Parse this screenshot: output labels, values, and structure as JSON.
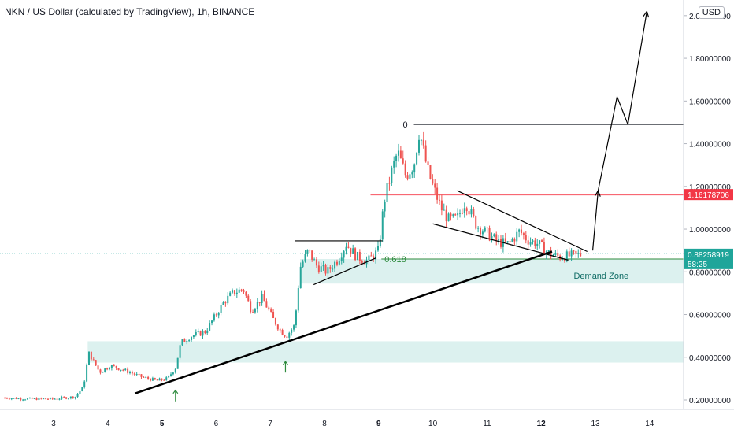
{
  "header": {
    "title": "NKN / US Dollar (calculated by TradingView), 1h, BINANCE",
    "currency_badge": "USD"
  },
  "chart_data": {
    "type": "candlestick",
    "title": "NKN / US Dollar (calculated by TradingView), 1h, BINANCE",
    "x_axis": {
      "ticks": [
        "3",
        "4",
        "5",
        "6",
        "7",
        "8",
        "9",
        "10",
        "11",
        "12",
        "13",
        "14"
      ],
      "bold_ticks": [
        "5",
        "9",
        "12"
      ]
    },
    "y_axis": {
      "ticks": [
        "0.20000000",
        "0.40000000",
        "0.60000000",
        "0.80000000",
        "1.00000000",
        "1.20000000",
        "1.40000000",
        "1.60000000",
        "1.80000000",
        "2.00000000"
      ],
      "range": [
        0.15,
        2.05
      ]
    },
    "price_tags": [
      {
        "value": 1.16178706,
        "label": "1.16178706",
        "color": "#f23645"
      },
      {
        "value": 0.88258919,
        "label": "0.88258919",
        "sublabel": "58:25",
        "color": "#1fa59a"
      }
    ],
    "levels": [
      {
        "label": "0",
        "value": 1.49,
        "color": "#131722"
      },
      {
        "label": "0.618",
        "value": 0.86,
        "color": "#2e8b3e"
      },
      {
        "value": 1.16,
        "color": "#f7525f"
      },
      {
        "value": 0.885,
        "color": "#1fa59a",
        "style": "dotted"
      }
    ],
    "zones": [
      {
        "label": "Demand Zone",
        "from": 0.745,
        "to": 0.86
      },
      {
        "label": "",
        "from": 0.375,
        "to": 0.475
      }
    ],
    "trendline": {
      "from": [
        4.5,
        0.23
      ],
      "to": [
        12.2,
        0.895
      ]
    },
    "projection": [
      [
        12.95,
        0.9
      ],
      [
        13.05,
        1.18
      ],
      [
        13.4,
        1.62
      ],
      [
        13.6,
        1.49
      ],
      [
        13.95,
        2.02
      ]
    ],
    "ohlc_path": [
      [
        2.1,
        0.21
      ],
      [
        2.5,
        0.205
      ],
      [
        3.0,
        0.205
      ],
      [
        3.4,
        0.215
      ],
      [
        3.55,
        0.26
      ],
      [
        3.65,
        0.42
      ],
      [
        3.85,
        0.33
      ],
      [
        4.05,
        0.36
      ],
      [
        4.3,
        0.34
      ],
      [
        4.6,
        0.31
      ],
      [
        4.9,
        0.29
      ],
      [
        5.1,
        0.3
      ],
      [
        5.25,
        0.35
      ],
      [
        5.35,
        0.47
      ],
      [
        5.55,
        0.5
      ],
      [
        5.8,
        0.52
      ],
      [
        6.0,
        0.6
      ],
      [
        6.15,
        0.66
      ],
      [
        6.3,
        0.7
      ],
      [
        6.5,
        0.72
      ],
      [
        6.65,
        0.62
      ],
      [
        6.85,
        0.68
      ],
      [
        7.05,
        0.58
      ],
      [
        7.2,
        0.52
      ],
      [
        7.3,
        0.5
      ],
      [
        7.45,
        0.55
      ],
      [
        7.55,
        0.82
      ],
      [
        7.7,
        0.9
      ],
      [
        7.85,
        0.83
      ],
      [
        8.05,
        0.8
      ],
      [
        8.25,
        0.86
      ],
      [
        8.4,
        0.93
      ],
      [
        8.6,
        0.87
      ],
      [
        8.8,
        0.85
      ],
      [
        9.0,
        0.9
      ],
      [
        9.1,
        1.13
      ],
      [
        9.25,
        1.28
      ],
      [
        9.35,
        1.36
      ],
      [
        9.5,
        1.25
      ],
      [
        9.65,
        1.3
      ],
      [
        9.75,
        1.46
      ],
      [
        9.9,
        1.28
      ],
      [
        10.0,
        1.2
      ],
      [
        10.15,
        1.1
      ],
      [
        10.3,
        1.04
      ],
      [
        10.45,
        1.05
      ],
      [
        10.6,
        1.13
      ],
      [
        10.8,
        1.02
      ],
      [
        11.0,
        0.98
      ],
      [
        11.2,
        0.94
      ],
      [
        11.4,
        0.93
      ],
      [
        11.6,
        0.99
      ],
      [
        11.75,
        0.95
      ],
      [
        11.95,
        0.93
      ],
      [
        12.15,
        0.885
      ],
      [
        12.35,
        0.87
      ],
      [
        12.55,
        0.875
      ],
      [
        12.75,
        0.882
      ]
    ]
  }
}
